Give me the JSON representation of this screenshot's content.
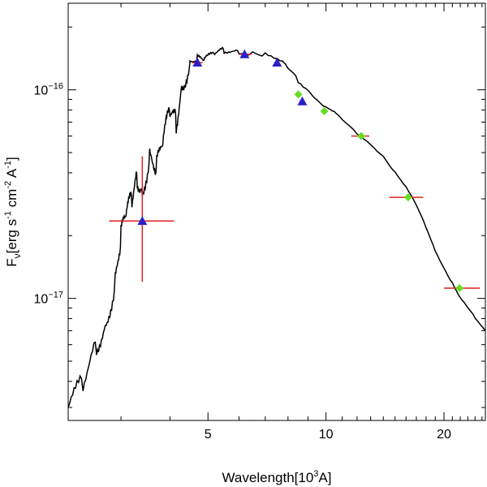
{
  "chart_data": {
    "type": "scatter",
    "title": "",
    "xlabel": {
      "text": "Wavelength[10",
      "sup": "3",
      "suffix": "A]"
    },
    "ylabel": {
      "pre": "F",
      "sub": "ν",
      "mid1": "[erg s",
      "sup1": "-1",
      "mid2": " cm",
      "sup2": "-2",
      "mid3": " A",
      "sup3": "-1",
      "post": "]"
    },
    "x_scale": "log",
    "y_scale": "log",
    "xlim": [
      2.2,
      25.5
    ],
    "ylim": [
      2.6e-18,
      2.6e-16
    ],
    "x_ticks": [
      {
        "value": 5,
        "label": "5"
      },
      {
        "value": 10,
        "label": "10"
      },
      {
        "value": 20,
        "label": "20"
      }
    ],
    "y_ticks": [
      {
        "value": 1e-16,
        "base": "10",
        "exp": "−16"
      },
      {
        "value": 1e-17,
        "base": "10",
        "exp": "−17"
      }
    ],
    "model_spectrum": {
      "name": "model SED",
      "color": "#000000",
      "points": [
        [
          2.2,
          3e-18
        ],
        [
          2.4,
          4e-18
        ],
        [
          2.6,
          6e-18
        ],
        [
          2.75,
          7.5e-18
        ],
        [
          2.9,
          1.2e-17
        ],
        [
          3.0,
          2e-17
        ],
        [
          3.1,
          2.6e-17
        ],
        [
          3.2,
          3e-17
        ],
        [
          3.3,
          3.8e-17
        ],
        [
          3.4,
          3.2e-17
        ],
        [
          3.55,
          4.8e-17
        ],
        [
          3.7,
          4.3e-17
        ],
        [
          3.85,
          5.8e-17
        ],
        [
          4.0,
          8e-17
        ],
        [
          4.15,
          7e-17
        ],
        [
          4.3,
          1.05e-16
        ],
        [
          4.5,
          1.35e-16
        ],
        [
          4.7,
          1.42e-16
        ],
        [
          4.9,
          1.4e-16
        ],
        [
          5.2,
          1.5e-16
        ],
        [
          5.5,
          1.55e-16
        ],
        [
          6.0,
          1.52e-16
        ],
        [
          6.5,
          1.5e-16
        ],
        [
          7.0,
          1.45e-16
        ],
        [
          7.5,
          1.38e-16
        ],
        [
          8.0,
          1.28e-16
        ],
        [
          8.5,
          1.12e-16
        ],
        [
          9.0,
          1e-16
        ],
        [
          9.5,
          8.9e-17
        ],
        [
          10.0,
          8.2e-17
        ],
        [
          10.5,
          7.8e-17
        ],
        [
          11.0,
          7.2e-17
        ],
        [
          12.0,
          6.2e-17
        ],
        [
          13.0,
          5.5e-17
        ],
        [
          14.0,
          4.8e-17
        ],
        [
          15.0,
          4e-17
        ],
        [
          16.0,
          3.4e-17
        ],
        [
          17.0,
          2.8e-17
        ],
        [
          18.0,
          2.2e-17
        ],
        [
          19.0,
          1.7e-17
        ],
        [
          20.0,
          1.4e-17
        ],
        [
          21.0,
          1.18e-17
        ],
        [
          22.0,
          1e-17
        ],
        [
          23.0,
          9e-18
        ],
        [
          24.0,
          8.1e-18
        ],
        [
          25.5,
          7e-18
        ]
      ]
    },
    "series": [
      {
        "name": "triangle photometry",
        "marker": "triangle",
        "color": "#2a20c8",
        "points": [
          {
            "x": 3.4,
            "y": 2.35e-17,
            "xerr": [
              2.8,
              4.1
            ],
            "yerr": [
              1.2e-17,
              4.8e-17
            ]
          },
          {
            "x": 4.7,
            "y": 1.35e-16,
            "xerr": [
              4.55,
              4.85
            ],
            "yerr": null
          },
          {
            "x": 6.2,
            "y": 1.48e-16,
            "xerr": [
              6.0,
              6.45
            ],
            "yerr": null
          },
          {
            "x": 7.5,
            "y": 1.35e-16,
            "xerr": null,
            "yerr": null
          },
          {
            "x": 8.7,
            "y": 8.8e-17,
            "xerr": null,
            "yerr": null
          }
        ]
      },
      {
        "name": "diamond photometry",
        "marker": "diamond",
        "color": "#66dd22",
        "points": [
          {
            "x": 8.5,
            "y": 9.5e-17,
            "xerr": null,
            "yerr": null
          },
          {
            "x": 9.9,
            "y": 7.9e-17,
            "xerr": null,
            "yerr": null
          },
          {
            "x": 12.3,
            "y": 6e-17,
            "xerr": [
              11.6,
              12.9
            ],
            "yerr": null
          },
          {
            "x": 16.2,
            "y": 3.05e-17,
            "xerr": [
              14.5,
              17.7
            ],
            "yerr": null
          },
          {
            "x": 21.9,
            "y": 1.12e-17,
            "xerr": [
              20.0,
              24.7
            ],
            "yerr": null
          }
        ]
      }
    ],
    "errorbar_color": "#e02020"
  }
}
